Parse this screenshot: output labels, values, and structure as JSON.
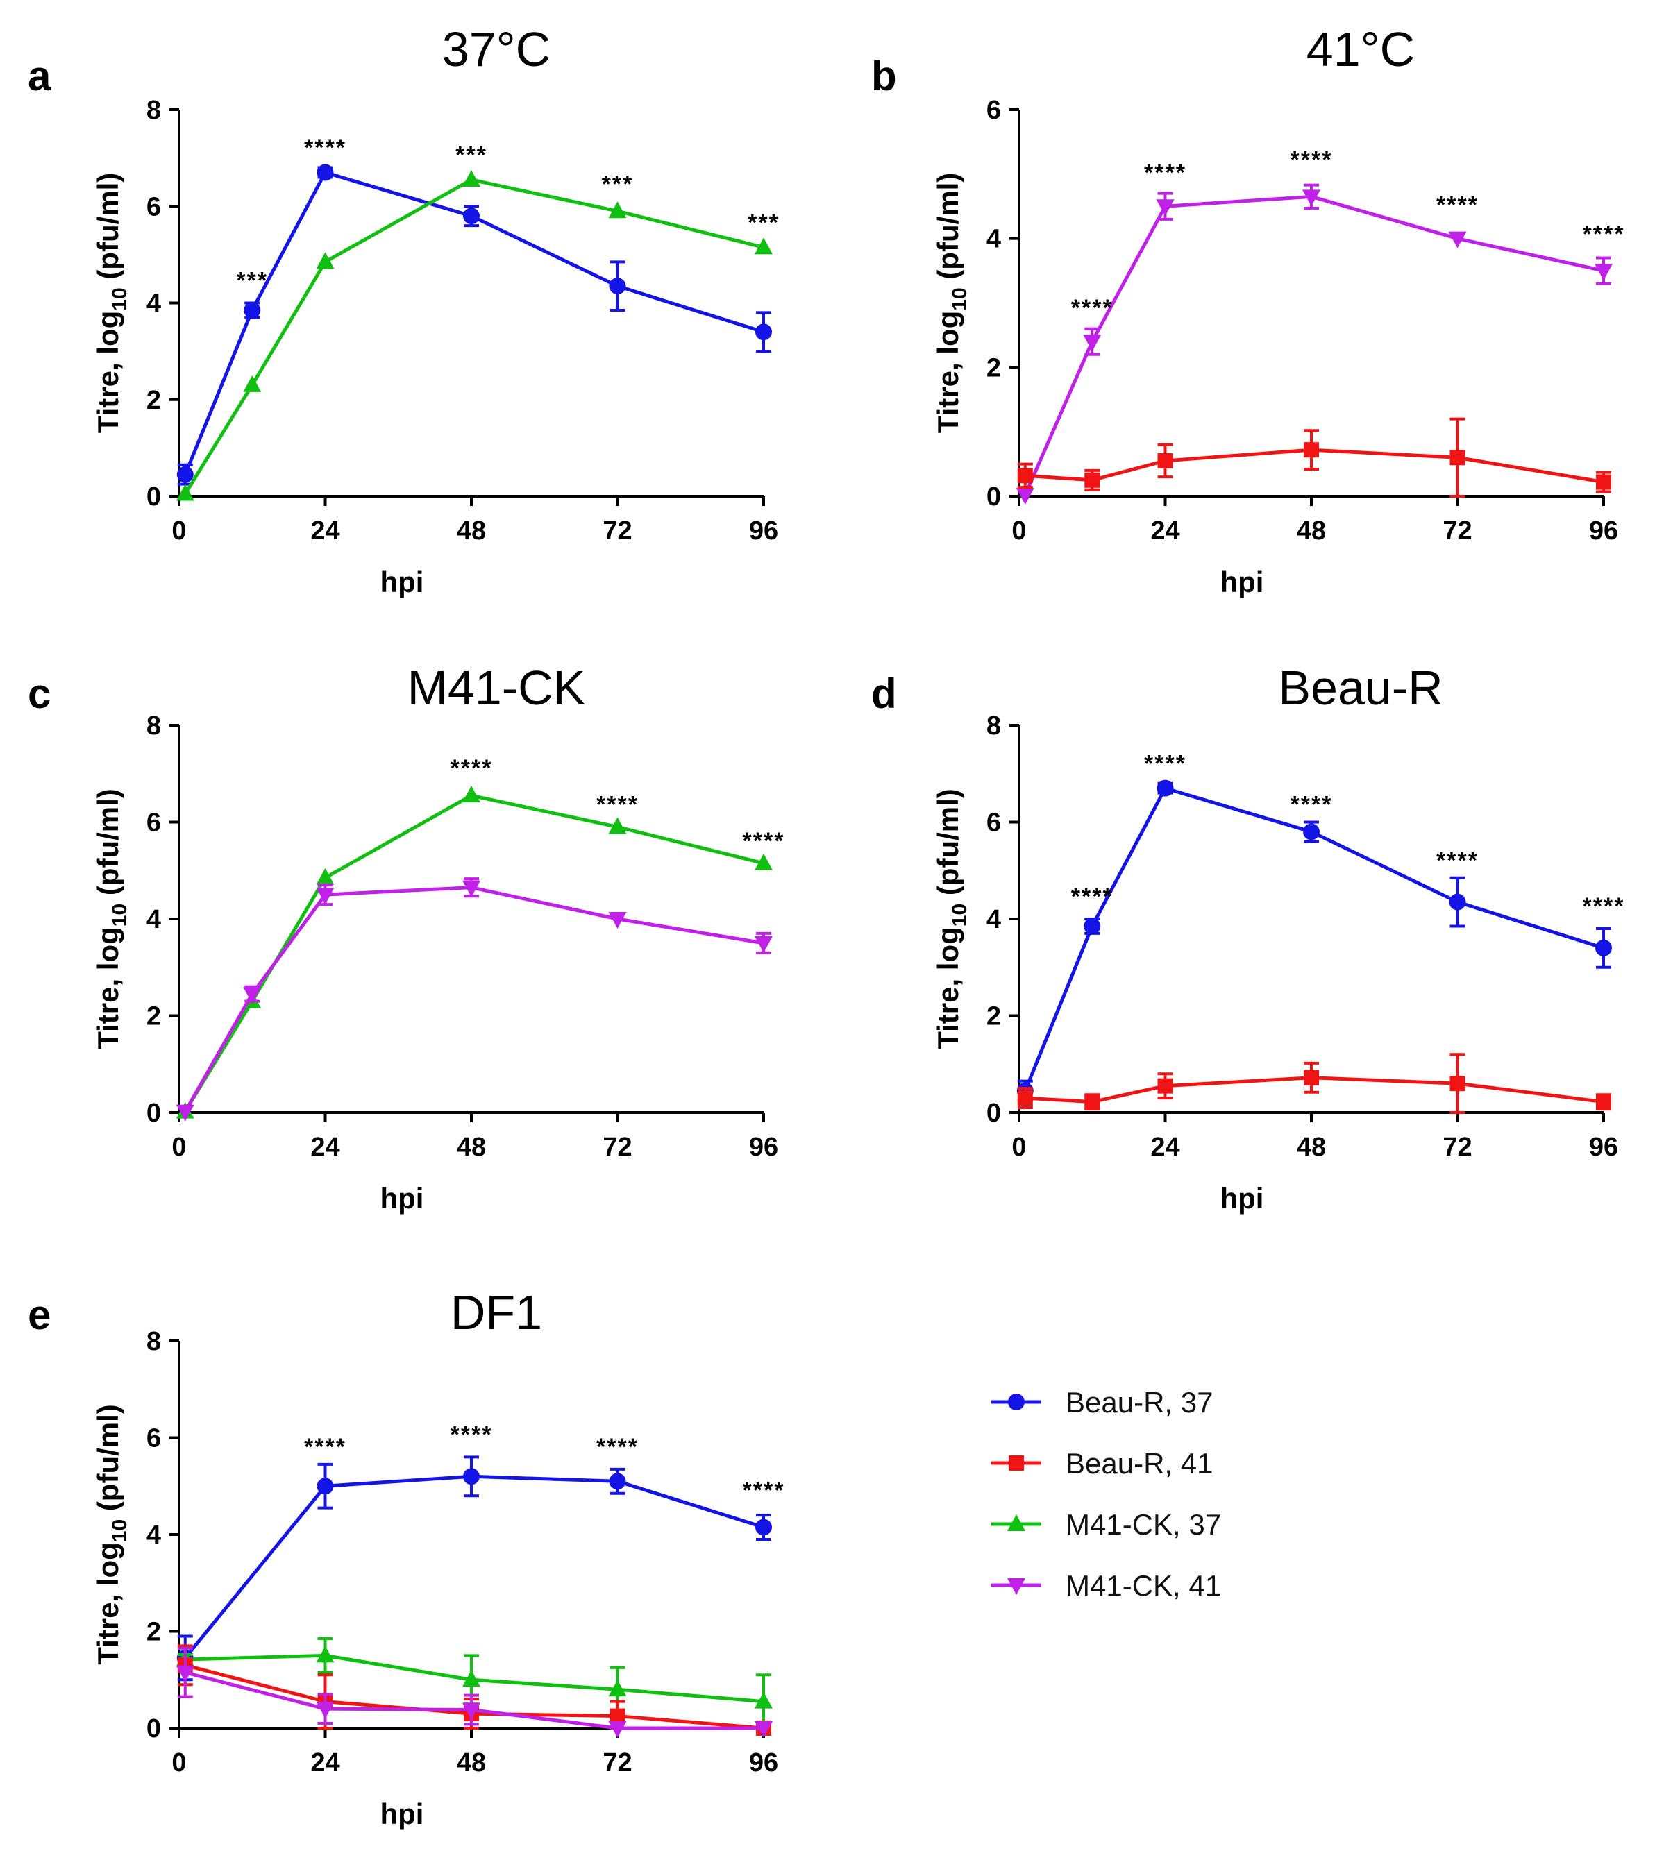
{
  "colors": {
    "blue": "#1414e6",
    "red": "#f01414",
    "green": "#10c010",
    "magenta": "#c020e8",
    "axis": "#000000"
  },
  "chart_data": [
    {
      "panel": "a",
      "type": "line",
      "title": "37°C",
      "xlabel": "hpi",
      "ylabel": "Titre, log10 (pfu/ml)",
      "ylabel_parts": [
        "Titre, log",
        "10",
        " (pfu/ml)"
      ],
      "xlim": [
        0,
        96
      ],
      "ylim": [
        0,
        8
      ],
      "xticks": [
        0,
        24,
        48,
        72,
        96
      ],
      "yticks": [
        0,
        2,
        4,
        6,
        8
      ],
      "series": [
        {
          "name": "Beau-R, 37",
          "color": "blue",
          "marker": "circle",
          "x": [
            1,
            12,
            24,
            48,
            72,
            96
          ],
          "y": [
            0.45,
            3.85,
            6.7,
            5.8,
            4.35,
            3.4
          ],
          "err": [
            0.2,
            0.15,
            0.1,
            0.2,
            0.5,
            0.4
          ]
        },
        {
          "name": "M41-CK, 37",
          "color": "green",
          "marker": "triangle-up",
          "x": [
            1,
            12,
            24,
            48,
            72,
            96
          ],
          "y": [
            0.05,
            2.3,
            4.85,
            6.55,
            5.9,
            5.15
          ],
          "err": [
            0,
            0.05,
            0.05,
            0.05,
            0.05,
            0.05
          ]
        }
      ],
      "annotations": [
        {
          "x": 12,
          "y": 4.3,
          "text": "***"
        },
        {
          "x": 24,
          "y": 7.05,
          "text": "****"
        },
        {
          "x": 48,
          "y": 6.9,
          "text": "***"
        },
        {
          "x": 72,
          "y": 6.3,
          "text": "***"
        },
        {
          "x": 96,
          "y": 5.5,
          "text": "***"
        }
      ]
    },
    {
      "panel": "b",
      "type": "line",
      "title": "41°C",
      "xlabel": "hpi",
      "ylabel": "Titre, log10 (pfu/ml)",
      "ylabel_parts": [
        "Titre, log",
        "10",
        " (pfu/ml)"
      ],
      "xlim": [
        0,
        96
      ],
      "ylim": [
        0,
        6
      ],
      "xticks": [
        0,
        24,
        48,
        72,
        96
      ],
      "yticks": [
        0,
        2,
        4,
        6
      ],
      "series": [
        {
          "name": "M41-CK, 41",
          "color": "magenta",
          "marker": "triangle-down",
          "x": [
            1,
            12,
            24,
            48,
            72,
            96
          ],
          "y": [
            0.02,
            2.4,
            4.5,
            4.65,
            4.0,
            3.5
          ],
          "err": [
            0.05,
            0.2,
            0.2,
            0.18,
            0.05,
            0.2
          ]
        },
        {
          "name": "Beau-R, 41",
          "color": "red",
          "marker": "square",
          "x": [
            1,
            12,
            24,
            48,
            72,
            96
          ],
          "y": [
            0.32,
            0.25,
            0.55,
            0.72,
            0.6,
            0.22
          ],
          "err": [
            0.18,
            0.15,
            0.25,
            0.3,
            0.6,
            0.15
          ]
        }
      ],
      "annotations": [
        {
          "x": 12,
          "y": 2.8,
          "text": "****"
        },
        {
          "x": 24,
          "y": 4.9,
          "text": "****"
        },
        {
          "x": 48,
          "y": 5.1,
          "text": "****"
        },
        {
          "x": 72,
          "y": 4.4,
          "text": "****"
        },
        {
          "x": 96,
          "y": 3.95,
          "text": "****"
        }
      ]
    },
    {
      "panel": "c",
      "type": "line",
      "title": "M41-CK",
      "xlabel": "hpi",
      "ylabel": "Titre, log10 (pfu/ml)",
      "ylabel_parts": [
        "Titre, log",
        "10",
        " (pfu/ml)"
      ],
      "xlim": [
        0,
        96
      ],
      "ylim": [
        0,
        8
      ],
      "xticks": [
        0,
        24,
        48,
        72,
        96
      ],
      "yticks": [
        0,
        2,
        4,
        6,
        8
      ],
      "series": [
        {
          "name": "M41-CK, 37",
          "color": "green",
          "marker": "triangle-up",
          "x": [
            1,
            12,
            24,
            48,
            72,
            96
          ],
          "y": [
            0.02,
            2.3,
            4.85,
            6.55,
            5.9,
            5.15
          ],
          "err": [
            0,
            0.05,
            0.05,
            0.05,
            0.05,
            0.05
          ]
        },
        {
          "name": "M41-CK, 41",
          "color": "magenta",
          "marker": "triangle-down",
          "x": [
            1,
            12,
            24,
            48,
            72,
            96
          ],
          "y": [
            0.02,
            2.45,
            4.5,
            4.65,
            4.0,
            3.5
          ],
          "err": [
            0.05,
            0.15,
            0.2,
            0.18,
            0.05,
            0.2
          ]
        }
      ],
      "annotations": [
        {
          "x": 48,
          "y": 6.95,
          "text": "****"
        },
        {
          "x": 72,
          "y": 6.2,
          "text": "****"
        },
        {
          "x": 96,
          "y": 5.45,
          "text": "****"
        }
      ]
    },
    {
      "panel": "d",
      "type": "line",
      "title": "Beau-R",
      "xlabel": "hpi",
      "ylabel": "Titre, log10 (pfu/ml)",
      "ylabel_parts": [
        "Titre, log",
        "10",
        " (pfu/ml)"
      ],
      "xlim": [
        0,
        96
      ],
      "ylim": [
        0,
        8
      ],
      "xticks": [
        0,
        24,
        48,
        72,
        96
      ],
      "yticks": [
        0,
        2,
        4,
        6,
        8
      ],
      "series": [
        {
          "name": "Beau-R, 37",
          "color": "blue",
          "marker": "circle",
          "x": [
            1,
            12,
            24,
            48,
            72,
            96
          ],
          "y": [
            0.45,
            3.85,
            6.7,
            5.8,
            4.35,
            3.4
          ],
          "err": [
            0.2,
            0.15,
            0.1,
            0.2,
            0.5,
            0.4
          ]
        },
        {
          "name": "Beau-R, 41",
          "color": "red",
          "marker": "square",
          "x": [
            1,
            12,
            24,
            48,
            72,
            96
          ],
          "y": [
            0.3,
            0.22,
            0.55,
            0.72,
            0.6,
            0.22
          ],
          "err": [
            0.2,
            0.15,
            0.25,
            0.3,
            0.6,
            0.15
          ]
        }
      ],
      "annotations": [
        {
          "x": 12,
          "y": 4.3,
          "text": "****"
        },
        {
          "x": 24,
          "y": 7.05,
          "text": "****"
        },
        {
          "x": 48,
          "y": 6.2,
          "text": "****"
        },
        {
          "x": 72,
          "y": 5.05,
          "text": "****"
        },
        {
          "x": 96,
          "y": 4.1,
          "text": "****"
        }
      ]
    },
    {
      "panel": "e",
      "type": "line",
      "title": "DF1",
      "xlabel": "hpi",
      "ylabel": "Titre, log10 (pfu/ml)",
      "ylabel_parts": [
        "Titre, log",
        "10",
        " (pfu/ml)"
      ],
      "xlim": [
        0,
        96
      ],
      "ylim": [
        0,
        8
      ],
      "xticks": [
        0,
        24,
        48,
        72,
        96
      ],
      "yticks": [
        0,
        2,
        4,
        6,
        8
      ],
      "series": [
        {
          "name": "Beau-R, 37",
          "color": "blue",
          "marker": "circle",
          "x": [
            1,
            24,
            48,
            72,
            96
          ],
          "y": [
            1.45,
            5.0,
            5.2,
            5.1,
            4.15
          ],
          "err": [
            0.45,
            0.45,
            0.4,
            0.25,
            0.25
          ]
        },
        {
          "name": "M41-CK, 37",
          "color": "green",
          "marker": "triangle-up",
          "x": [
            1,
            24,
            48,
            72,
            96
          ],
          "y": [
            1.42,
            1.5,
            1.0,
            0.8,
            0.55
          ],
          "err": [
            0.1,
            0.35,
            0.5,
            0.45,
            0.55
          ]
        },
        {
          "name": "Beau-R, 41",
          "color": "red",
          "marker": "square",
          "x": [
            1,
            24,
            48,
            72,
            96
          ],
          "y": [
            1.3,
            0.55,
            0.3,
            0.25,
            0.0
          ],
          "err": [
            0.4,
            0.55,
            0.3,
            0.3,
            0.05
          ]
        },
        {
          "name": "M41-CK, 41",
          "color": "magenta",
          "marker": "triangle-down",
          "x": [
            1,
            24,
            48,
            72,
            96
          ],
          "y": [
            1.15,
            0.4,
            0.38,
            0.0,
            0.0
          ],
          "err": [
            0.5,
            0.3,
            0.3,
            0.05,
            0.05
          ]
        }
      ],
      "annotations": [
        {
          "x": 24,
          "y": 5.65,
          "text": "****"
        },
        {
          "x": 48,
          "y": 5.9,
          "text": "****"
        },
        {
          "x": 72,
          "y": 5.65,
          "text": "****"
        },
        {
          "x": 96,
          "y": 4.75,
          "text": "****"
        }
      ]
    }
  ],
  "legend": [
    {
      "label": "Beau-R, 37",
      "color": "blue",
      "marker": "circle"
    },
    {
      "label": "Beau-R, 41",
      "color": "red",
      "marker": "square"
    },
    {
      "label": "M41-CK, 37",
      "color": "green",
      "marker": "triangle-up"
    },
    {
      "label": "M41-CK, 41",
      "color": "magenta",
      "marker": "triangle-down"
    }
  ]
}
